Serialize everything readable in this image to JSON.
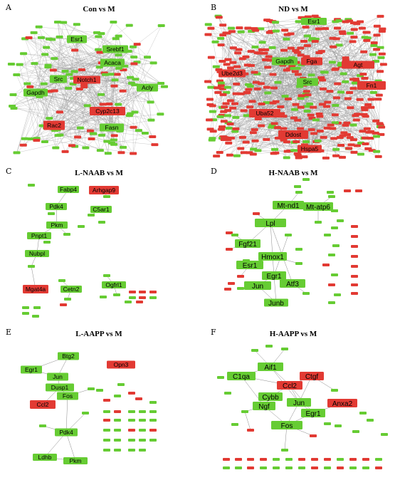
{
  "colors": {
    "up": "#e23a33",
    "down": "#66cc33",
    "edge": "#8a8a8a"
  },
  "panels": [
    {
      "letter": "A",
      "title": "Con vs M",
      "nodes": [
        {
          "label": "Esr1",
          "color": "down"
        },
        {
          "label": "Srebf1",
          "color": "down"
        },
        {
          "label": "Acaca",
          "color": "down"
        },
        {
          "label": "Src",
          "color": "down"
        },
        {
          "label": "Notch1",
          "color": "up"
        },
        {
          "label": "Acly",
          "color": "down"
        },
        {
          "label": "Gapdh",
          "color": "down"
        },
        {
          "label": "Cyp2c13",
          "color": "up"
        },
        {
          "label": "Rac2",
          "color": "up"
        },
        {
          "label": "Fasn",
          "color": "down"
        }
      ]
    },
    {
      "letter": "B",
      "title": "ND vs M",
      "nodes": [
        {
          "label": "Esr1",
          "color": "down"
        },
        {
          "label": "Ube2d3",
          "color": "up"
        },
        {
          "label": "Gapdh",
          "color": "down"
        },
        {
          "label": "Fga",
          "color": "up"
        },
        {
          "label": "Agt",
          "color": "up"
        },
        {
          "label": "Src",
          "color": "down"
        },
        {
          "label": "Fn1",
          "color": "up"
        },
        {
          "label": "Uba52",
          "color": "up"
        },
        {
          "label": "Ddost",
          "color": "up"
        },
        {
          "label": "Hspa5",
          "color": "up"
        }
      ]
    },
    {
      "letter": "C",
      "title": "L-NAAB vs M",
      "nodes": [
        {
          "label": "Fabp4",
          "color": "down"
        },
        {
          "label": "Arhgap9",
          "color": "up"
        },
        {
          "label": "Pdk4",
          "color": "down"
        },
        {
          "label": "C5ar1",
          "color": "down"
        },
        {
          "label": "Pkm",
          "color": "down"
        },
        {
          "label": "Pnpt1",
          "color": "down"
        },
        {
          "label": "Nubpl",
          "color": "down"
        },
        {
          "label": "Mgat4a",
          "color": "up"
        },
        {
          "label": "Cetn2",
          "color": "down"
        },
        {
          "label": "Ogfrl1",
          "color": "down"
        }
      ]
    },
    {
      "letter": "D",
      "title": "H-NAAB vs M",
      "nodes": [
        {
          "label": "Mt-nd1",
          "color": "down"
        },
        {
          "label": "Mt-atp6",
          "color": "down"
        },
        {
          "label": "Lpl",
          "color": "down"
        },
        {
          "label": "Fgf21",
          "color": "down"
        },
        {
          "label": "Hmox1",
          "color": "down"
        },
        {
          "label": "Esr1",
          "color": "down"
        },
        {
          "label": "Egr1",
          "color": "down"
        },
        {
          "label": "Jun",
          "color": "down"
        },
        {
          "label": "Atf3",
          "color": "down"
        },
        {
          "label": "Junb",
          "color": "down"
        }
      ]
    },
    {
      "letter": "E",
      "title": "L-AAPP vs M",
      "nodes": [
        {
          "label": "Btg2",
          "color": "down"
        },
        {
          "label": "Egr1",
          "color": "down"
        },
        {
          "label": "Jun",
          "color": "down"
        },
        {
          "label": "Opn3",
          "color": "up"
        },
        {
          "label": "Dusp1",
          "color": "down"
        },
        {
          "label": "Fos",
          "color": "down"
        },
        {
          "label": "Ccl2",
          "color": "up"
        },
        {
          "label": "Pdk4",
          "color": "down"
        },
        {
          "label": "Ldhb",
          "color": "down"
        },
        {
          "label": "Pkm",
          "color": "down"
        }
      ]
    },
    {
      "letter": "F",
      "title": "H-AAPP vs M",
      "nodes": [
        {
          "label": "Aif1",
          "color": "down"
        },
        {
          "label": "C1qa",
          "color": "down"
        },
        {
          "label": "Ctgf",
          "color": "up"
        },
        {
          "label": "Ccl2",
          "color": "up"
        },
        {
          "label": "Cybb",
          "color": "down"
        },
        {
          "label": "Ngf",
          "color": "down"
        },
        {
          "label": "Jun",
          "color": "down"
        },
        {
          "label": "Anxa2",
          "color": "up"
        },
        {
          "label": "Egr1",
          "color": "down"
        },
        {
          "label": "Fos",
          "color": "down"
        }
      ]
    }
  ]
}
